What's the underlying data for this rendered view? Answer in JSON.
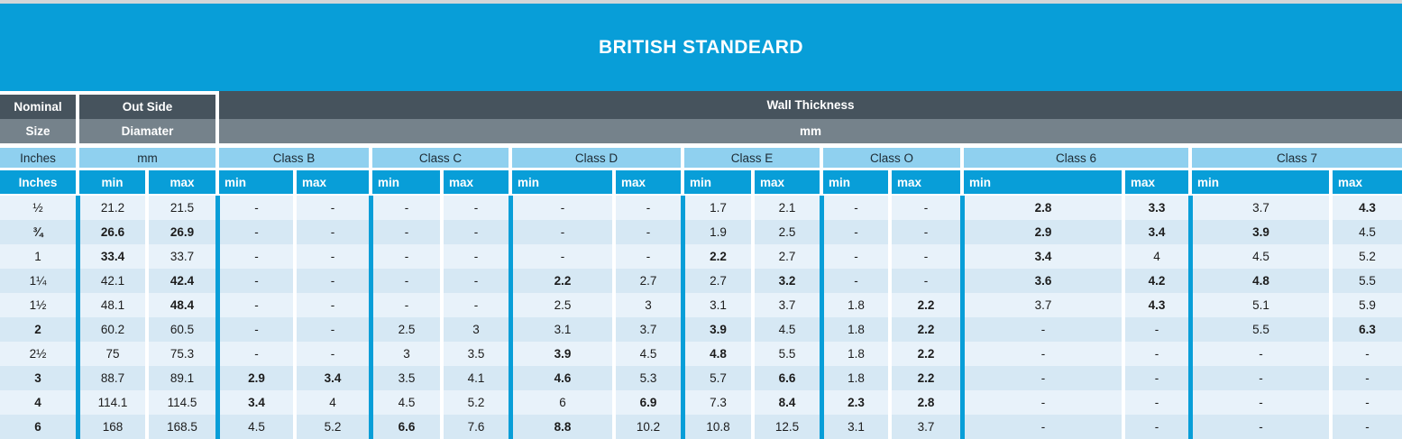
{
  "title": "BRITISH STANDEARD",
  "colors": {
    "accent_blue": "#089ed8",
    "light_blue": "#8fd0ef",
    "dark_slate": "#46535d",
    "mid_slate": "#75828b",
    "row_light": "#e8f2fa",
    "row_dark": "#d6e8f4",
    "top_strip": "#d3d6d8"
  },
  "header": {
    "row1": {
      "nominal": "Nominal",
      "outside": "Out Side",
      "wall": "Wall Thickness"
    },
    "row2": {
      "size": "Size",
      "diamater": "Diamater",
      "mm": "mm"
    },
    "row3": {
      "inches": "Inches",
      "mm": "mm",
      "classes": [
        "Class B",
        "Class C",
        "Class D",
        "Class E",
        "Class O",
        "Class 6",
        "Class 7"
      ]
    },
    "row4": {
      "inches": "Inches",
      "min": "min",
      "max": "max"
    }
  },
  "table": {
    "group_keys": [
      "outside_diameter",
      "class_b",
      "class_c",
      "class_d",
      "class_e",
      "class_o",
      "class_6",
      "class_7"
    ],
    "rows": [
      {
        "size": "½",
        "bold": false,
        "cells": [
          [
            "21.2",
            0
          ],
          [
            "21.5",
            0
          ],
          [
            "-",
            0
          ],
          [
            "-",
            0
          ],
          [
            "-",
            0
          ],
          [
            "-",
            0
          ],
          [
            "-",
            0
          ],
          [
            "-",
            0
          ],
          [
            "1.7",
            0
          ],
          [
            "2.1",
            0
          ],
          [
            "-",
            0
          ],
          [
            "-",
            0
          ],
          [
            "2.8",
            1
          ],
          [
            "3.3",
            1
          ],
          [
            "3.7",
            0
          ],
          [
            "4.3",
            1
          ]
        ]
      },
      {
        "size": "¾",
        "bold": true,
        "cells": [
          [
            "26.6",
            1
          ],
          [
            "26.9",
            1
          ],
          [
            "-",
            0
          ],
          [
            "-",
            0
          ],
          [
            "-",
            0
          ],
          [
            "-",
            0
          ],
          [
            "-",
            0
          ],
          [
            "-",
            0
          ],
          [
            "1.9",
            0
          ],
          [
            "2.5",
            0
          ],
          [
            "-",
            0
          ],
          [
            "-",
            0
          ],
          [
            "2.9",
            1
          ],
          [
            "3.4",
            1
          ],
          [
            "3.9",
            1
          ],
          [
            "4.5",
            0
          ]
        ]
      },
      {
        "size": "1",
        "bold": false,
        "cells": [
          [
            "33.4",
            1
          ],
          [
            "33.7",
            0
          ],
          [
            "-",
            0
          ],
          [
            "-",
            0
          ],
          [
            "-",
            0
          ],
          [
            "-",
            0
          ],
          [
            "-",
            0
          ],
          [
            "-",
            0
          ],
          [
            "2.2",
            1
          ],
          [
            "2.7",
            0
          ],
          [
            "-",
            0
          ],
          [
            "-",
            0
          ],
          [
            "3.4",
            1
          ],
          [
            "4",
            0
          ],
          [
            "4.5",
            0
          ],
          [
            "5.2",
            0
          ]
        ]
      },
      {
        "size": "1¼",
        "bold": false,
        "cells": [
          [
            "42.1",
            0
          ],
          [
            "42.4",
            1
          ],
          [
            "-",
            0
          ],
          [
            "-",
            0
          ],
          [
            "-",
            0
          ],
          [
            "-",
            0
          ],
          [
            "2.2",
            1
          ],
          [
            "2.7",
            0
          ],
          [
            "2.7",
            0
          ],
          [
            "3.2",
            1
          ],
          [
            "-",
            0
          ],
          [
            "-",
            0
          ],
          [
            "3.6",
            1
          ],
          [
            "4.2",
            1
          ],
          [
            "4.8",
            1
          ],
          [
            "5.5",
            0
          ]
        ]
      },
      {
        "size": "1½",
        "bold": false,
        "cells": [
          [
            "48.1",
            0
          ],
          [
            "48.4",
            1
          ],
          [
            "-",
            0
          ],
          [
            "-",
            0
          ],
          [
            "-",
            0
          ],
          [
            "-",
            0
          ],
          [
            "2.5",
            0
          ],
          [
            "3",
            0
          ],
          [
            "3.1",
            0
          ],
          [
            "3.7",
            0
          ],
          [
            "1.8",
            0
          ],
          [
            "2.2",
            1
          ],
          [
            "3.7",
            0
          ],
          [
            "4.3",
            1
          ],
          [
            "5.1",
            0
          ],
          [
            "5.9",
            0
          ]
        ]
      },
      {
        "size": "2",
        "bold": true,
        "cells": [
          [
            "60.2",
            0
          ],
          [
            "60.5",
            0
          ],
          [
            "-",
            0
          ],
          [
            "-",
            0
          ],
          [
            "2.5",
            0
          ],
          [
            "3",
            0
          ],
          [
            "3.1",
            0
          ],
          [
            "3.7",
            0
          ],
          [
            "3.9",
            1
          ],
          [
            "4.5",
            0
          ],
          [
            "1.8",
            0
          ],
          [
            "2.2",
            1
          ],
          [
            "-",
            0
          ],
          [
            "-",
            0
          ],
          [
            "5.5",
            0
          ],
          [
            "6.3",
            1
          ]
        ]
      },
      {
        "size": "2½",
        "bold": false,
        "cells": [
          [
            "75",
            0
          ],
          [
            "75.3",
            0
          ],
          [
            "-",
            0
          ],
          [
            "-",
            0
          ],
          [
            "3",
            0
          ],
          [
            "3.5",
            0
          ],
          [
            "3.9",
            1
          ],
          [
            "4.5",
            0
          ],
          [
            "4.8",
            1
          ],
          [
            "5.5",
            0
          ],
          [
            "1.8",
            0
          ],
          [
            "2.2",
            1
          ],
          [
            "-",
            0
          ],
          [
            "-",
            0
          ],
          [
            "-",
            0
          ],
          [
            "-",
            0
          ]
        ]
      },
      {
        "size": "3",
        "bold": true,
        "cells": [
          [
            "88.7",
            0
          ],
          [
            "89.1",
            0
          ],
          [
            "2.9",
            1
          ],
          [
            "3.4",
            1
          ],
          [
            "3.5",
            0
          ],
          [
            "4.1",
            0
          ],
          [
            "4.6",
            1
          ],
          [
            "5.3",
            0
          ],
          [
            "5.7",
            0
          ],
          [
            "6.6",
            1
          ],
          [
            "1.8",
            0
          ],
          [
            "2.2",
            1
          ],
          [
            "-",
            0
          ],
          [
            "-",
            0
          ],
          [
            "-",
            0
          ],
          [
            "-",
            0
          ]
        ]
      },
      {
        "size": "4",
        "bold": true,
        "cells": [
          [
            "114.1",
            0
          ],
          [
            "114.5",
            0
          ],
          [
            "3.4",
            1
          ],
          [
            "4",
            0
          ],
          [
            "4.5",
            0
          ],
          [
            "5.2",
            0
          ],
          [
            "6",
            0
          ],
          [
            "6.9",
            1
          ],
          [
            "7.3",
            0
          ],
          [
            "8.4",
            1
          ],
          [
            "2.3",
            1
          ],
          [
            "2.8",
            1
          ],
          [
            "-",
            0
          ],
          [
            "-",
            0
          ],
          [
            "-",
            0
          ],
          [
            "-",
            0
          ]
        ]
      },
      {
        "size": "6",
        "bold": true,
        "cells": [
          [
            "168",
            0
          ],
          [
            "168.5",
            0
          ],
          [
            "4.5",
            0
          ],
          [
            "5.2",
            0
          ],
          [
            "6.6",
            1
          ],
          [
            "7.6",
            0
          ],
          [
            "8.8",
            1
          ],
          [
            "10.2",
            0
          ],
          [
            "10.8",
            0
          ],
          [
            "12.5",
            0
          ],
          [
            "3.1",
            0
          ],
          [
            "3.7",
            0
          ],
          [
            "-",
            0
          ],
          [
            "-",
            0
          ],
          [
            "-",
            0
          ],
          [
            "-",
            0
          ]
        ]
      }
    ]
  }
}
